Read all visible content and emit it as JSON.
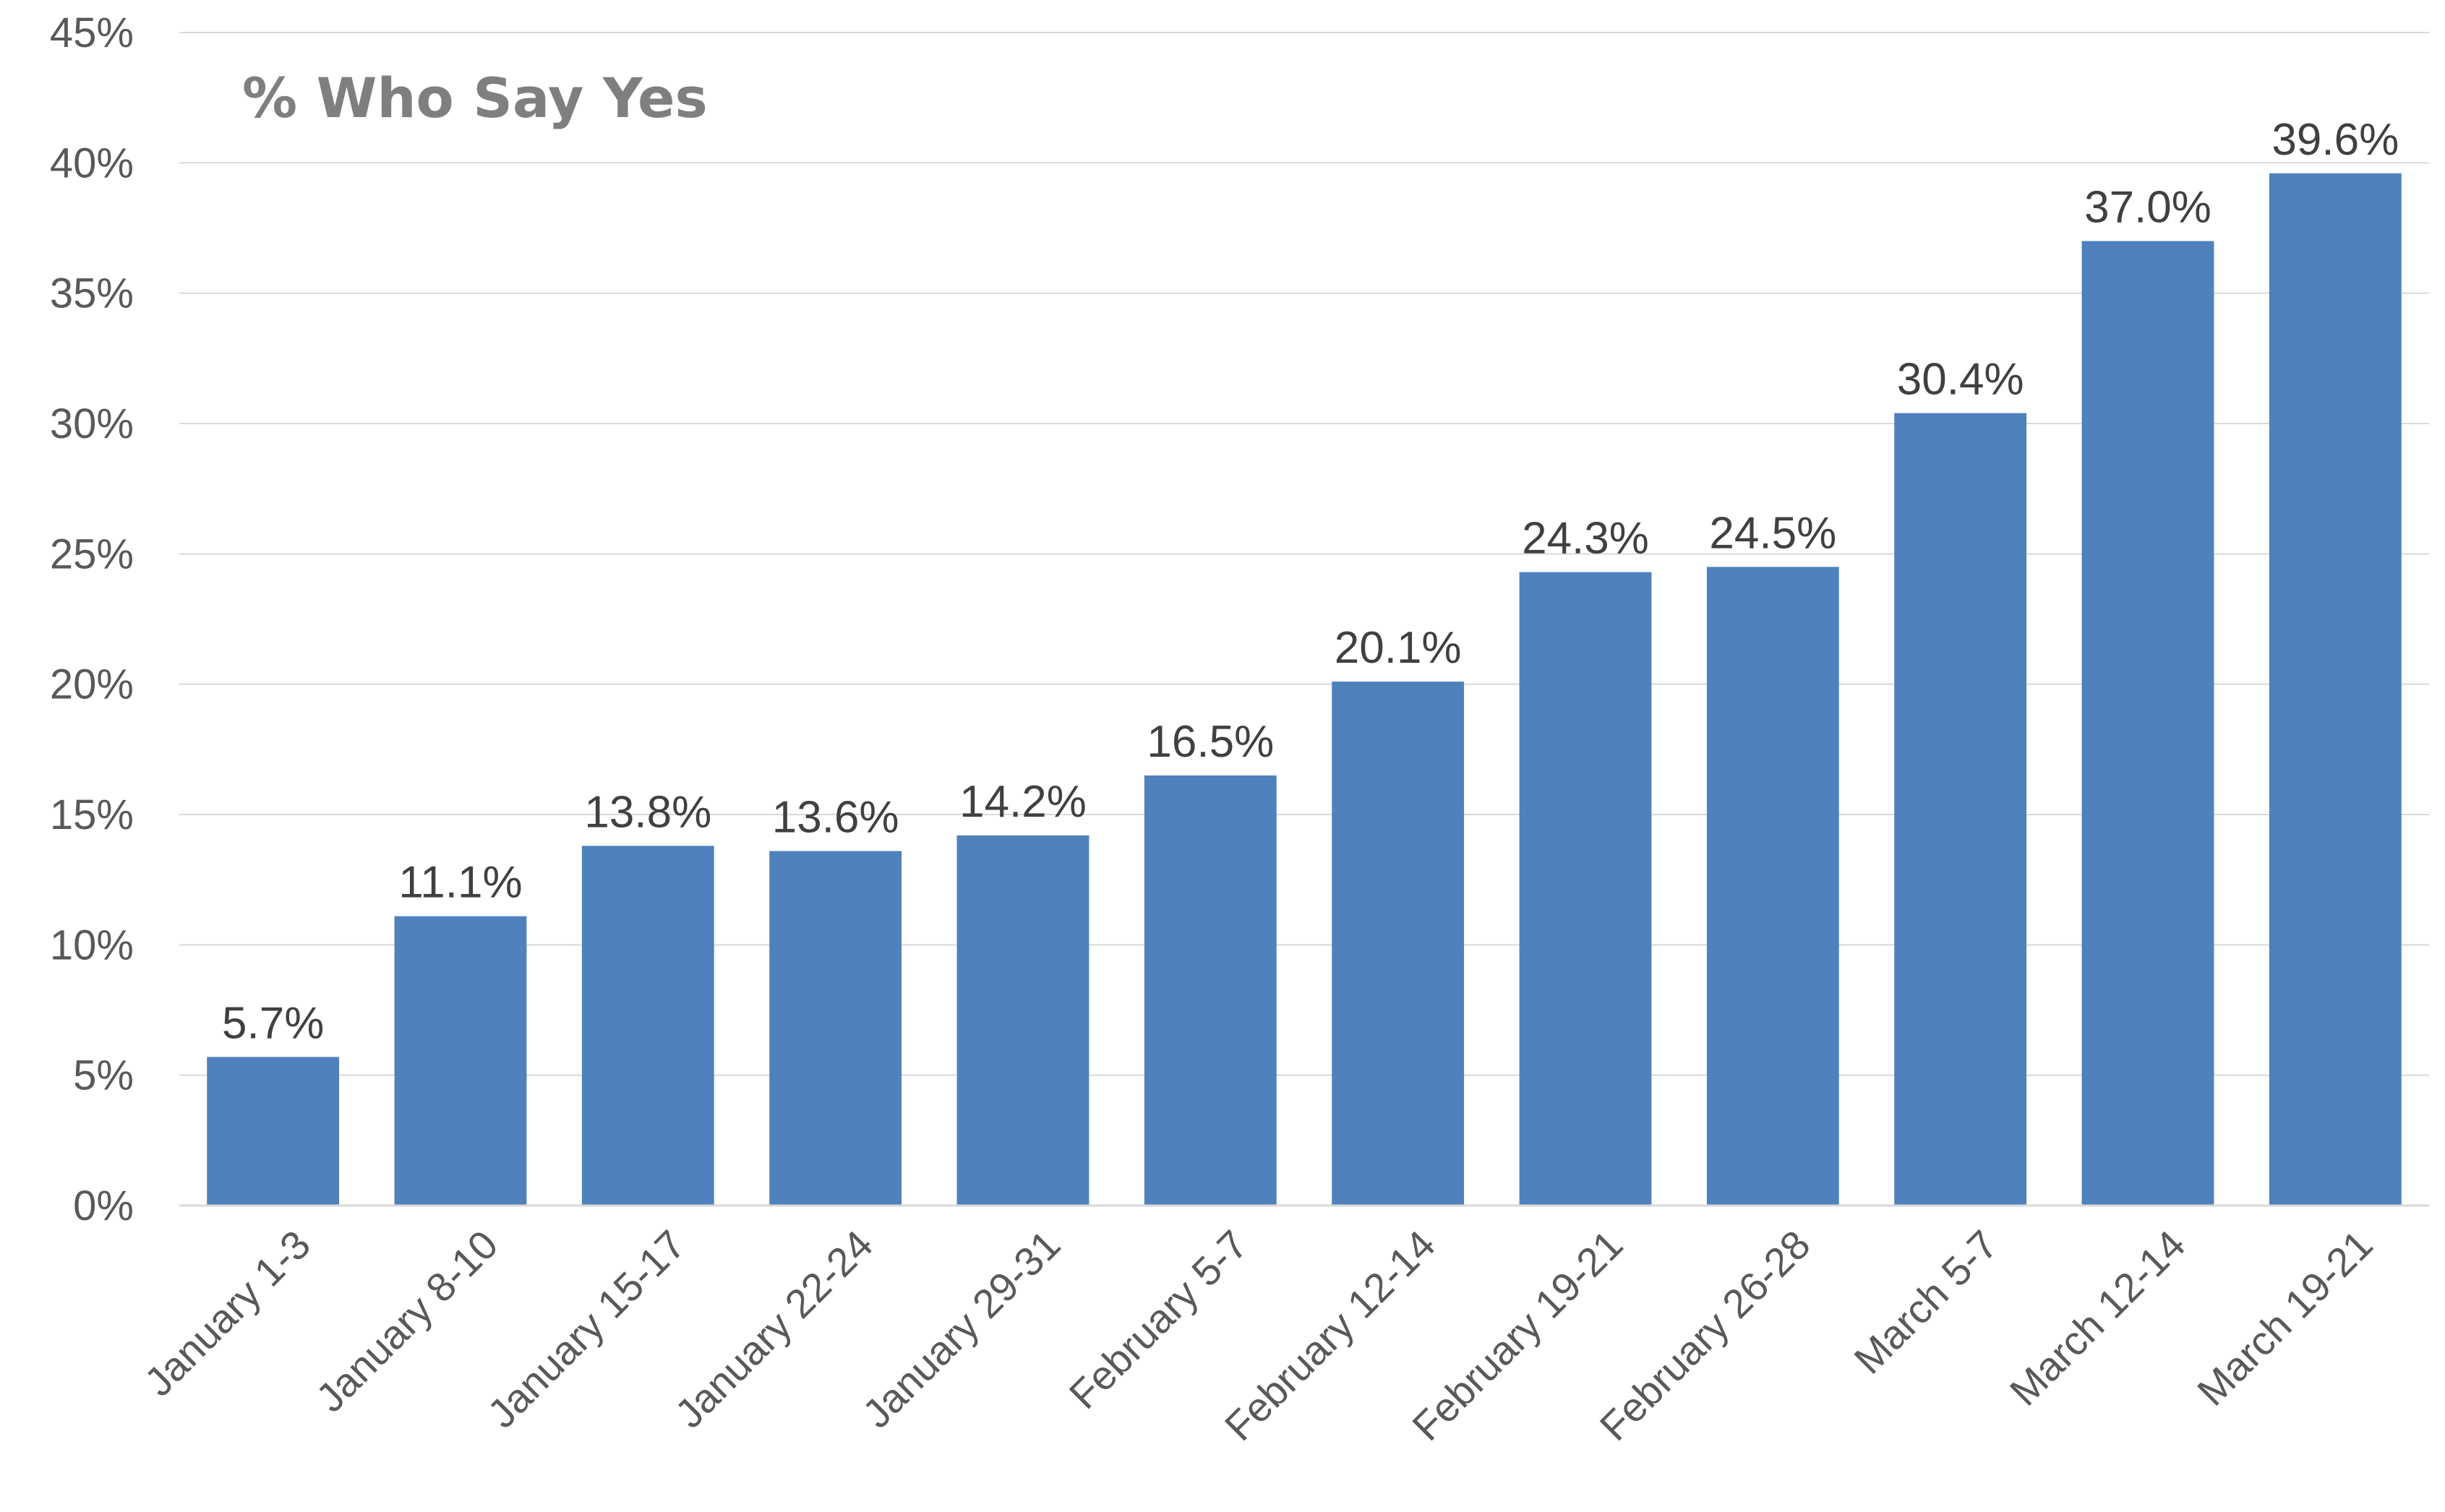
{
  "chart_data": {
    "type": "bar",
    "title": "% Who Say Yes",
    "xlabel": "",
    "ylabel": "",
    "categories": [
      "January 1-3",
      "January 8-10",
      "January 15-17",
      "January 22-24",
      "January 29-31",
      "February 5-7",
      "February 12-14",
      "February 19-21",
      "February 26-28",
      "March 5-7",
      "March 12-14",
      "March 19-21"
    ],
    "values": [
      5.7,
      11.1,
      13.8,
      13.6,
      14.2,
      16.5,
      20.1,
      24.3,
      24.5,
      30.4,
      37.0,
      39.6
    ],
    "data_labels": [
      "5.7%",
      "11.1%",
      "13.8%",
      "13.6%",
      "14.2%",
      "16.5%",
      "20.1%",
      "24.3%",
      "24.5%",
      "30.4%",
      "37.0%",
      "39.6%"
    ],
    "ylim": [
      0,
      45
    ],
    "y_ticks": [
      0,
      5,
      10,
      15,
      20,
      25,
      30,
      35,
      40,
      45
    ],
    "y_tick_labels": [
      "0%",
      "5%",
      "10%",
      "15%",
      "20%",
      "25%",
      "30%",
      "35%",
      "40%",
      "45%"
    ],
    "grid": true,
    "legend": "none",
    "bar_color": "#4f81bd"
  }
}
